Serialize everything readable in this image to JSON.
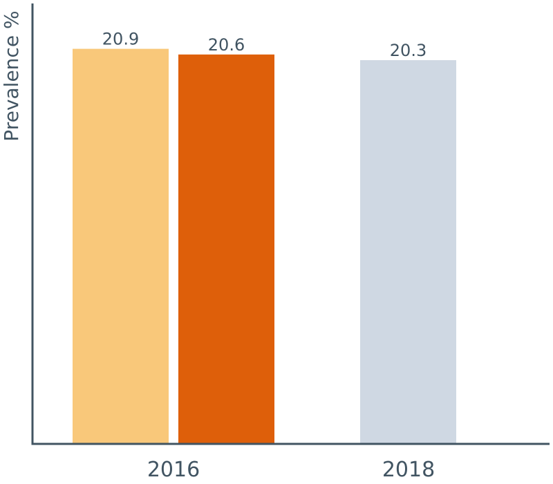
{
  "chart_data": {
    "type": "bar",
    "title": "",
    "xlabel": "",
    "ylabel": "Prevalence %",
    "ylim": [
      0,
      23.3
    ],
    "grid": false,
    "categories": [
      "2016",
      "2018"
    ],
    "bars": [
      {
        "category": "2016",
        "value": 20.9,
        "label": "20.9",
        "color": "#F9C87A"
      },
      {
        "category": "2016",
        "value": 20.6,
        "label": "20.6",
        "color": "#DE5F0A"
      },
      {
        "category": "2018",
        "value": 20.3,
        "label": "20.3",
        "color": "#CFD8E3"
      }
    ],
    "axis_color": "#415462",
    "text_color": "#415462"
  }
}
